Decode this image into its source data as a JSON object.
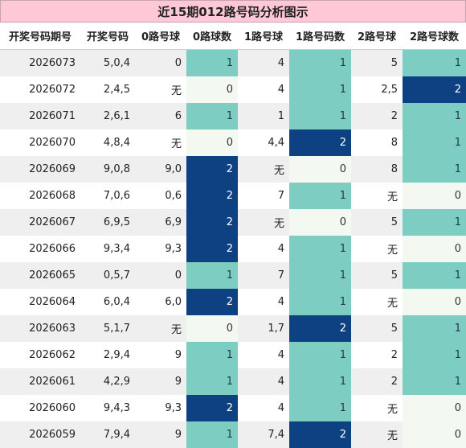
{
  "title": "近15期012路号码分析图示",
  "headers": [
    "开奖号码期号",
    "开奖号码",
    "0路号球",
    "0路球数",
    "1路号球",
    "1路号码数",
    "2路号球",
    "2路号球数"
  ],
  "colors": {
    "count_0": "#f3f9f1",
    "count_1": "#7ecdc3",
    "count_2": "#0e4182",
    "title_bg": "#ffc8d6"
  },
  "rows": [
    [
      "2026073",
      "5,0,4",
      "0",
      "1",
      "4",
      "1",
      "5",
      "1"
    ],
    [
      "2026072",
      "2,4,5",
      "无",
      "0",
      "4",
      "1",
      "2,5",
      "2"
    ],
    [
      "2026071",
      "2,6,1",
      "6",
      "1",
      "1",
      "1",
      "2",
      "1"
    ],
    [
      "2026070",
      "4,8,4",
      "无",
      "0",
      "4,4",
      "2",
      "8",
      "1"
    ],
    [
      "2026069",
      "9,0,8",
      "9,0",
      "2",
      "无",
      "0",
      "8",
      "1"
    ],
    [
      "2026068",
      "7,0,6",
      "0,6",
      "2",
      "7",
      "1",
      "无",
      "0"
    ],
    [
      "2026067",
      "6,9,5",
      "6,9",
      "2",
      "无",
      "0",
      "5",
      "1"
    ],
    [
      "2026066",
      "9,3,4",
      "9,3",
      "2",
      "4",
      "1",
      "无",
      "0"
    ],
    [
      "2026065",
      "0,5,7",
      "0",
      "1",
      "7",
      "1",
      "5",
      "1"
    ],
    [
      "2026064",
      "6,0,4",
      "6,0",
      "2",
      "4",
      "1",
      "无",
      "0"
    ],
    [
      "2026063",
      "5,1,7",
      "无",
      "0",
      "1,7",
      "2",
      "5",
      "1"
    ],
    [
      "2026062",
      "2,9,4",
      "9",
      "1",
      "4",
      "1",
      "2",
      "1"
    ],
    [
      "2026061",
      "4,2,9",
      "9",
      "1",
      "4",
      "1",
      "2",
      "1"
    ],
    [
      "2026060",
      "9,4,3",
      "9,3",
      "2",
      "4",
      "1",
      "无",
      "0"
    ],
    [
      "2026059",
      "7,9,4",
      "9",
      "1",
      "7,4",
      "2",
      "无",
      "0"
    ]
  ]
}
